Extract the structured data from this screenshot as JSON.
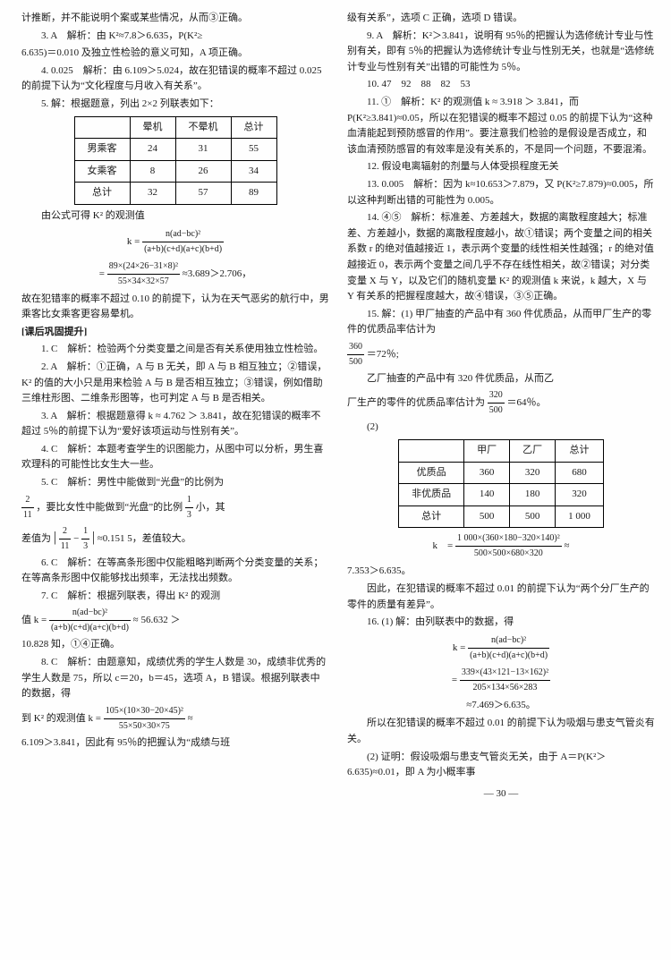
{
  "left": {
    "p1": "计推断，并不能说明个案或某些情况，从而③正确。",
    "p2a": "3. A　解析：由 K²≈7.8＞6.635，P(K²≥",
    "p2b": "6.635)＝0.010 及独立性检验的意义可知，A 项正确。",
    "p3": "4. 0.025　解析：由 6.109＞5.024，故在犯错误的概率不超过 0.025 的前提下认为“文化程度与月收入有关系”。",
    "p4": "5. 解：根据题意，列出 2×2 列联表如下：",
    "t1": {
      "headers": [
        "",
        "晕机",
        "不晕机",
        "总计"
      ],
      "rows": [
        [
          "男乘客",
          "24",
          "31",
          "55"
        ],
        [
          "女乘客",
          "8",
          "26",
          "34"
        ],
        [
          "总计",
          "32",
          "57",
          "89"
        ]
      ]
    },
    "p5": "由公式可得 K² 的观测值",
    "f1a": "k =",
    "f1num": "n(ad−bc)²",
    "f1den": "(a+b)(c+d)(a+c)(b+d)",
    "f2num": "89×(24×26−31×8)²",
    "f2den": "55×34×32×57",
    "f2tail": "≈3.689＞2.706，",
    "p6": "故在犯错率的概率不超过 0.10 的前提下，认为在天气恶劣的航行中，男乘客比女乘客更容易晕机。",
    "section1": "[课后巩固提升]",
    "p7": "1. C　解析：检验两个分类变量之间是否有关系使用独立性检验。",
    "p8": "2. A　解析：①正确，A 与 B 无关，即 A 与 B 相互独立；②错误，K² 的值的大小只是用来检验 A 与 B 是否相互独立；③错误，例如借助三维柱形图、二维条形图等，也可判定 A 与 B 是否相关。",
    "p9": "3. A　解析：根据题意得 k ≈ 4.762 ＞ 3.841，故在犯错误的概率不超过 5％的前提下认为“爱好该项运动与性别有关”。",
    "p10": "4. C　解析：本题考查学生的识图能力，从图中可以分析，男生喜欢理科的可能性比女生大一些。",
    "p11a": "5. C　解析：男性中能做到“光盘”的比例为",
    "p11b": "，要比女性中能做到“光盘”的比例 ",
    "p11c": " 小，其",
    "f3a": "2",
    "f3b": "11",
    "f3c": "1",
    "f3d": "3",
    "p11d": "差值为",
    "f4a": "2",
    "f4b": "11",
    "f4c": "1",
    "f4d": "3",
    "p11e": "≈0.151 5，差值较大。",
    "p12": "6. C　解析：在等高条形图中仅能粗略判断两个分类变量的关系；在等高条形图中仅能够找出频率，无法找出频数。",
    "p13a": "7. C　解析：根据列联表，得出 K² 的观测",
    "p13b": "值 k =",
    "f5num": "n(ad−bc)²",
    "f5den": "(a+b)(c+d)(a+c)(b+d)",
    "f5tail": "≈ 56.632 ＞",
    "p13c": "10.828 知，①④正确。",
    "p14a": "8. C　解析：由题意知，成绩优秀的学生人数是 30，成绩非优秀的学生人数是 75，所以 c＝20，b＝45，选项 A，B 错误。根据列联表中的数据，得",
    "p14b": "到 K² 的观测值 k =",
    "f6num": "105×(10×30−20×45)²",
    "f6den": "55×50×30×75",
    "f6tail": "≈",
    "p14c": "6.109＞3.841，因此有 95％的把握认为“成绩与班"
  },
  "right": {
    "p1": "级有关系”，选项 C 正确，选项 D 错误。",
    "p2": "9. A　解析：K²＞3.841，说明有 95％的把握认为选修统计专业与性别有关，即有 5％的把握认为选修统计专业与性别无关，也就是“选修统计专业与性别有关”出错的可能性为 5％。",
    "p3": "10. 47　92　88　82　53",
    "p4": "11. ①　解析：K² 的观测值 k ≈ 3.918 ＞ 3.841，而 P(K²≥3.841)≈0.05，所以在犯错误的概率不超过 0.05 的前提下认为“这种血清能起到预防感冒的作用”。要注意我们检验的是假设是否成立，和该血清预防感冒的有效率是没有关系的，不是同一个问题，不要混淆。",
    "p5": "12. 假设电离辐射的剂量与人体受损程度无关",
    "p6": "13. 0.005　解析：因为 k≈10.653＞7.879，又 P(K²≥7.879)≈0.005，所以这种判断出错的可能性为 0.005。",
    "p7": "14. ④⑤　解析：标准差、方差越大，数据的离散程度越大；标准差、方差越小，数据的离散程度越小，故①错误；两个变量之间的相关系数 r 的绝对值越接近 1，表示两个变量的线性相关性越强；r 的绝对值越接近 0，表示两个变量之间几乎不存在线性相关，故②错误；对分类变量 X 与 Y，以及它们的随机变量 K² 的观测值 k 来说，k 越大，X 与 Y 有关系的把握程度越大，故④错误，③⑤正确。",
    "p8a": "15. 解：(1) 甲厂抽查的产品中有 360 件优质品，从而甲厂生产的零件的优质品率估计为",
    "f7a": "360",
    "f7b": "500",
    "f7c": "＝72％;",
    "p8b": "乙厂抽查的产品中有 320 件优质品，从而乙",
    "p8c": "厂生产的零件的优质品率估计为",
    "f8a": "320",
    "f8b": "500",
    "f8c": "＝64％。",
    "p8d": "(2)",
    "t2": {
      "headers": [
        "",
        "甲厂",
        "乙厂",
        "总计"
      ],
      "rows": [
        [
          "优质品",
          "360",
          "320",
          "680"
        ],
        [
          "非优质品",
          "140",
          "180",
          "320"
        ],
        [
          "总计",
          "500",
          "500",
          "1 000"
        ]
      ]
    },
    "f9a": "k　=",
    "f9num": "1 000×(360×180−320×140)²",
    "f9den": "500×500×680×320",
    "f9tail": "≈",
    "p9": "7.353＞6.635。",
    "p10": "因此，在犯错误的概率不超过 0.01 的前提下认为“两个分厂生产的零件的质量有差异”。",
    "p11a": "16. (1) 解：由列联表中的数据，得",
    "f10a": "k =",
    "f10num": "n(ad−bc)²",
    "f10den": "(a+b)(c+d)(a+c)(b+d)",
    "f11num": "339×(43×121−13×162)²",
    "f11den": "205×134×56×283",
    "f11tail": "",
    "p11b": "≈7.469＞6.635。",
    "p12": "所以在犯错误的概率不超过 0.01 的前提下认为吸烟与患支气管炎有关。",
    "p13": "(2) 证明：假设吸烟与患支气管炎无关，由于 A＝P(K²＞6.635)≈0.01，即 A 为小概率事"
  },
  "page": "— 30 —"
}
